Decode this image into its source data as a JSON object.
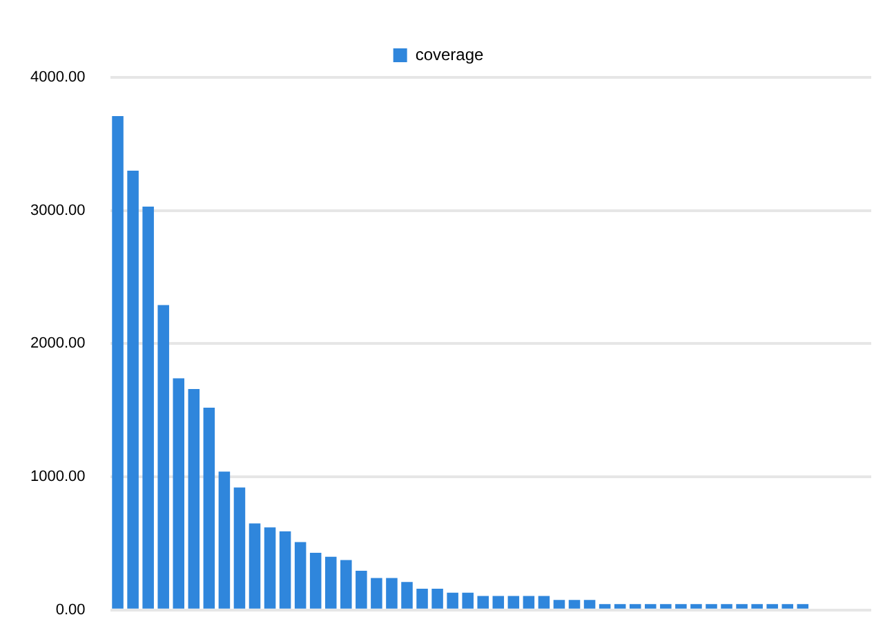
{
  "chart_data": {
    "type": "bar",
    "categories": [
      null,
      null,
      null,
      null,
      null,
      null,
      null,
      null,
      null,
      null,
      null,
      null,
      null,
      null,
      null,
      null,
      null,
      null,
      null,
      null,
      null,
      null,
      null,
      null,
      null,
      null,
      null,
      null,
      null,
      null,
      null,
      null,
      null,
      null,
      null,
      null,
      null,
      null,
      null,
      null,
      null,
      null,
      null,
      null,
      null,
      null,
      null,
      null,
      null,
      null
    ],
    "series": [
      {
        "name": "coverage",
        "color": "#2f86dc",
        "values": [
          3710,
          3300,
          3030,
          2290,
          1740,
          1660,
          1520,
          1040,
          920,
          650,
          620,
          590,
          510,
          430,
          400,
          375,
          295,
          240,
          240,
          210,
          160,
          160,
          130,
          130,
          105,
          105,
          105,
          105,
          105,
          75,
          75,
          75,
          45,
          45,
          45,
          45,
          45,
          45,
          45,
          45,
          45,
          45,
          45,
          45,
          45,
          45,
          null,
          null,
          null,
          null
        ]
      }
    ],
    "ylim": [
      0,
      4000
    ],
    "yticks": [
      {
        "value": 0,
        "label": "0.00"
      },
      {
        "value": 1000,
        "label": "1000.00"
      },
      {
        "value": 2000,
        "label": "2000.00"
      },
      {
        "value": 3000,
        "label": "3000.00"
      },
      {
        "value": 4000,
        "label": "4000.00"
      }
    ],
    "grid": "y",
    "legend": "top"
  }
}
